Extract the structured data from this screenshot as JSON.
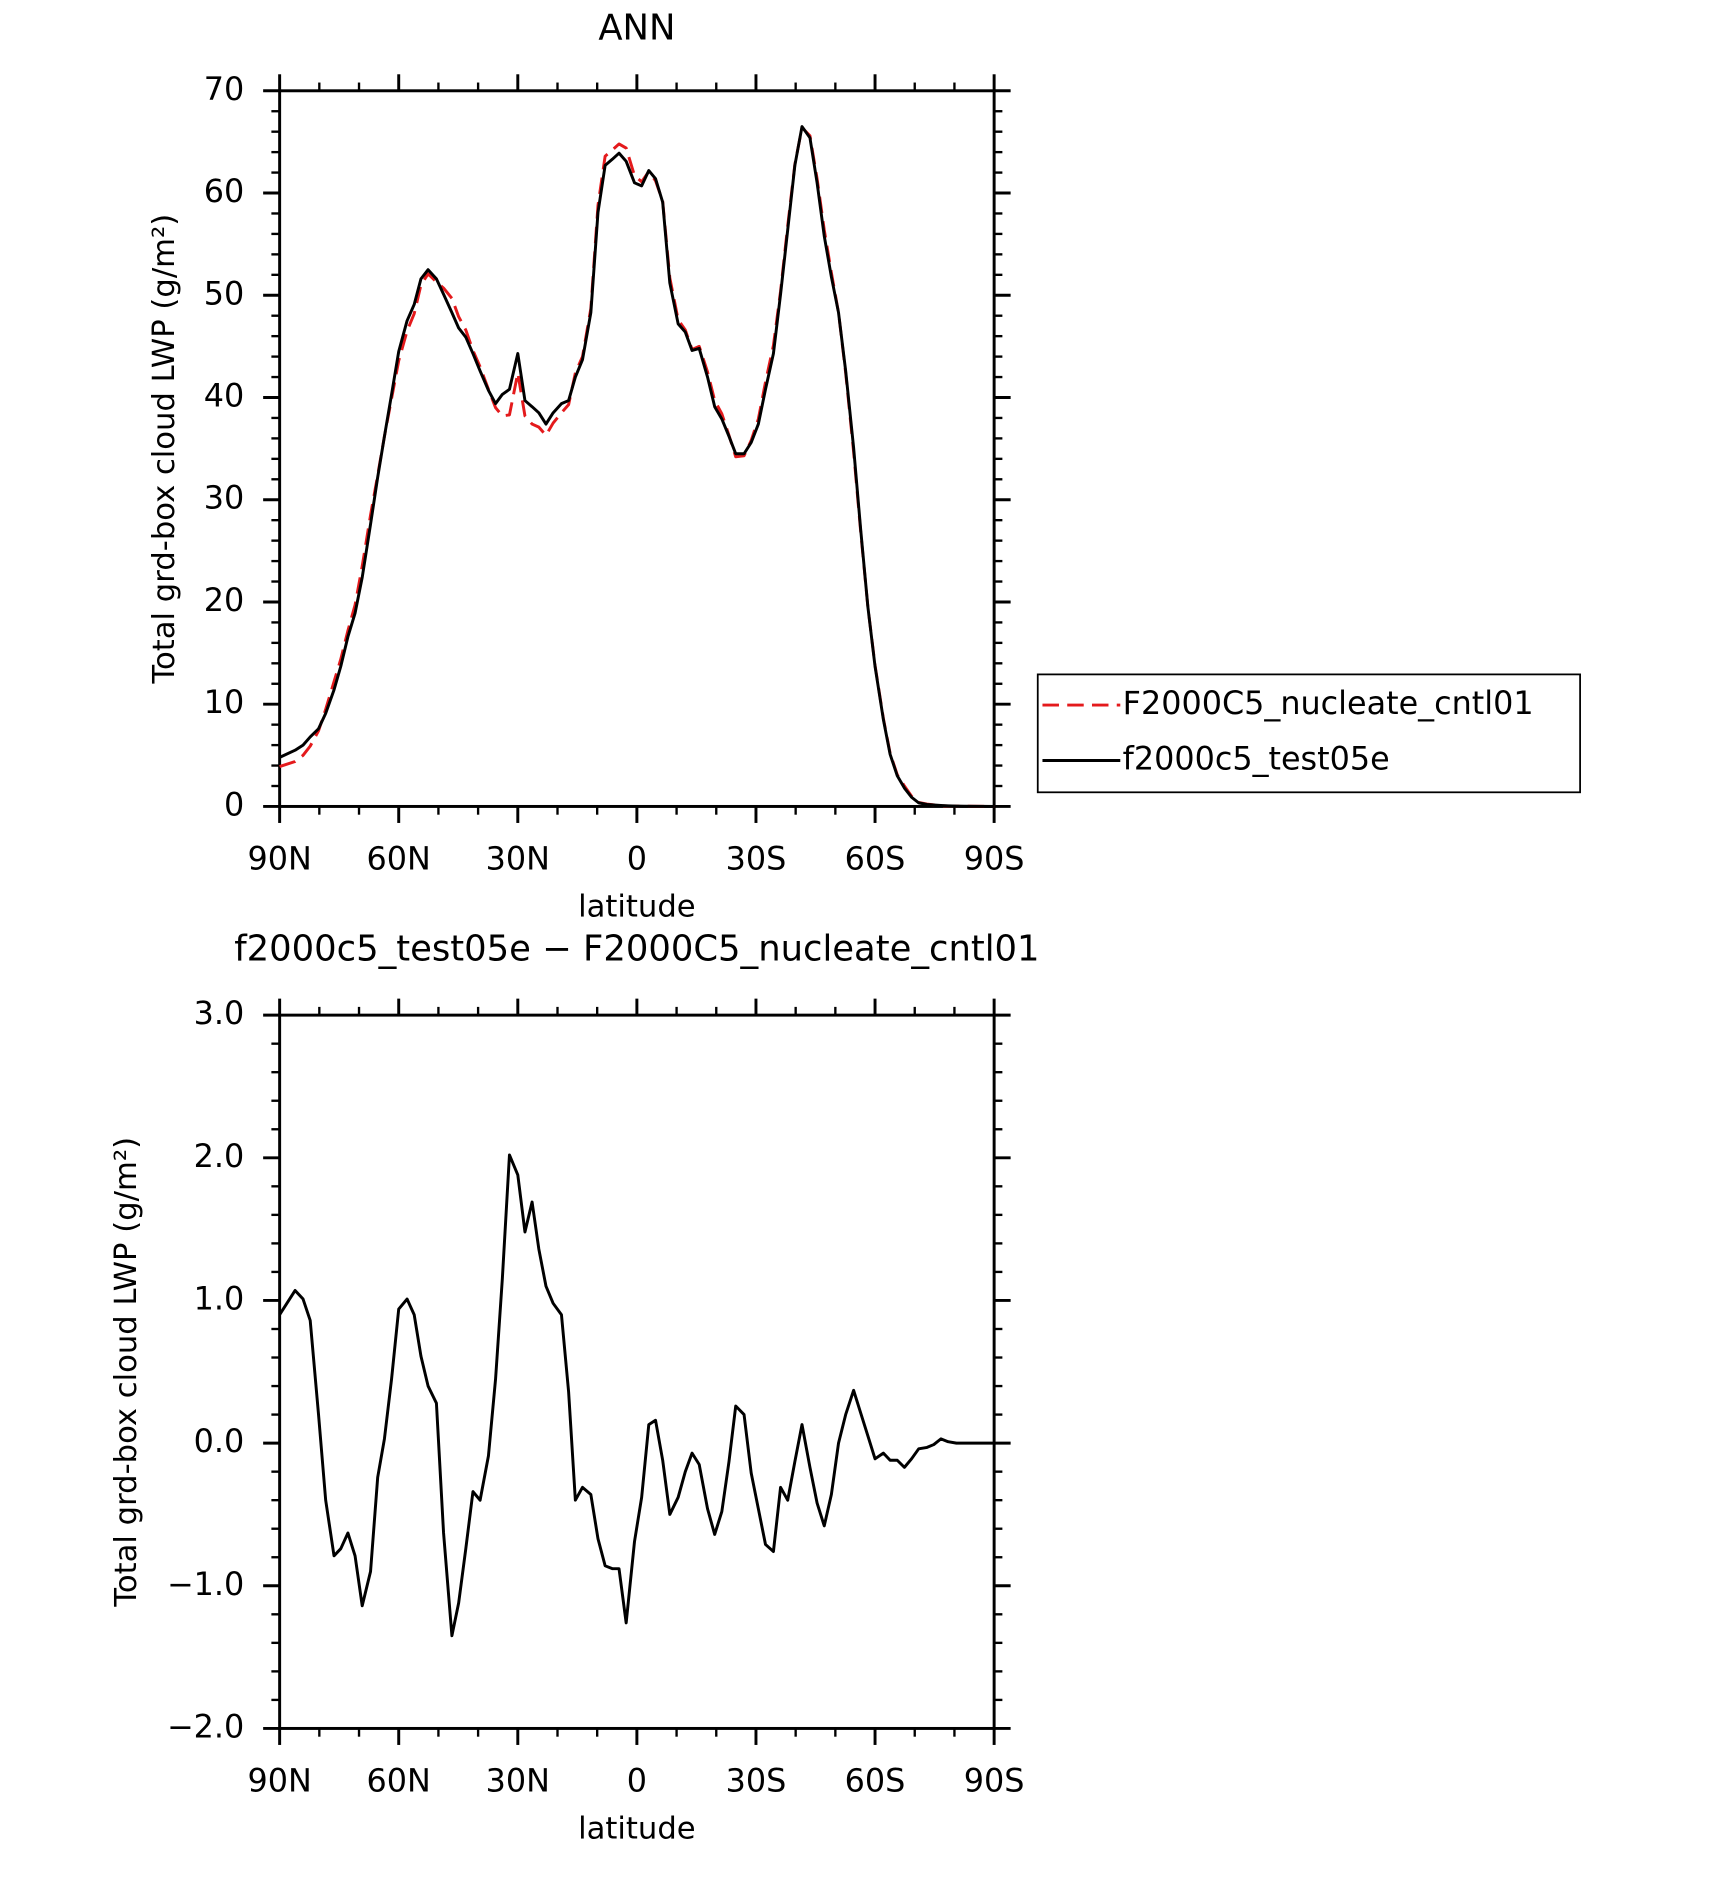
{
  "chart_data": [
    {
      "type": "line",
      "title": "ANN",
      "ylabel": "Total grd-box cloud LWP (g/m²)",
      "xlabel": "latitude",
      "x": [
        90,
        86.1,
        84.1,
        82.3,
        80.2,
        78.4,
        76.3,
        74.6,
        72.8,
        71.0,
        69.2,
        67.1,
        65.3,
        63.6,
        61.8,
        60.0,
        57.9,
        56.1,
        54.4,
        52.6,
        50.5,
        48.7,
        46.6,
        44.9,
        43.1,
        41.3,
        39.5,
        37.4,
        35.6,
        33.9,
        32.1,
        30.0,
        28.2,
        26.4,
        24.7,
        22.9,
        21.1,
        19.0,
        17.2,
        15.5,
        13.7,
        11.6,
        9.8,
        8.0,
        6.2,
        4.5,
        2.7,
        0.6,
        -1.2,
        -3.0,
        -4.7,
        -6.5,
        -8.3,
        -10.4,
        -12.2,
        -13.9,
        -15.7,
        -17.8,
        -19.6,
        -21.4,
        -23.2,
        -24.9,
        -27.0,
        -28.8,
        -30.6,
        -32.4,
        -34.4,
        -36.2,
        -38.0,
        -39.8,
        -41.6,
        -43.6,
        -45.4,
        -47.2,
        -49.0,
        -50.8,
        -52.6,
        -54.6,
        -56.4,
        -58.2,
        -60.0,
        -62.1,
        -63.8,
        -65.6,
        -67.4,
        -69.2,
        -71.0,
        -73.1,
        -74.8,
        -76.6,
        -78.4,
        -80.5,
        -82.3,
        -90
      ],
      "series": [
        {
          "name": "F2000C5_nucleate_cntl01",
          "color": "#e41a1c",
          "dash": true,
          "values": [
            3.9,
            4.4,
            5.0,
            5.9,
            7.4,
            9.5,
            12.2,
            14.4,
            17.2,
            19.7,
            23.5,
            28.5,
            32.4,
            36.2,
            39.9,
            43.6,
            46.5,
            48.2,
            51.0,
            52.1,
            51.3,
            50.7,
            49.7,
            47.9,
            46.6,
            44.6,
            43.0,
            40.8,
            39.0,
            38.2,
            38.3,
            42.4,
            38.2,
            37.4,
            37.1,
            36.3,
            37.5,
            38.5,
            39.3,
            42.4,
            44.0,
            48.7,
            58.8,
            63.6,
            64.2,
            64.8,
            64.4,
            61.7,
            61.1,
            62.1,
            61.2,
            59.2,
            51.7,
            47.6,
            46.6,
            44.7,
            45.0,
            42.5,
            39.7,
            38.4,
            36.3,
            34.2,
            34.3,
            35.8,
            37.9,
            41.5,
            45.1,
            50.4,
            56.8,
            62.8,
            66.4,
            65.6,
            61.4,
            56.4,
            52.2,
            48.3,
            42.4,
            34.7,
            26.8,
            19.5,
            13.8,
            8.6,
            5.2,
            3.1,
            2.0,
            1.0,
            0.39,
            0.23,
            0.16,
            0.07,
            0.05,
            0.03,
            0.02,
            0
          ]
        },
        {
          "name": "f2000c5_test05e",
          "color": "#000000",
          "dash": false,
          "values": [
            4.8,
            5.5,
            6.0,
            6.8,
            7.6,
            9.1,
            11.4,
            13.7,
            16.6,
            18.9,
            22.4,
            27.6,
            32.2,
            36.2,
            40.3,
            44.5,
            47.5,
            49.1,
            51.6,
            52.5,
            51.6,
            50.1,
            48.3,
            46.8,
            45.9,
            44.3,
            42.6,
            40.7,
            39.4,
            40.3,
            40.8,
            44.3,
            39.7,
            39.1,
            38.5,
            37.4,
            38.5,
            39.4,
            39.7,
            42.0,
            43.7,
            48.3,
            58.1,
            62.7,
            63.3,
            63.9,
            63.1,
            61.0,
            60.7,
            62.2,
            61.4,
            59.1,
            51.2,
            47.2,
            46.4,
            44.6,
            44.8,
            42.0,
            39.1,
            37.9,
            36.2,
            34.5,
            34.5,
            35.6,
            37.4,
            40.8,
            44.3,
            50.1,
            56.4,
            62.7,
            66.5,
            65.4,
            61.0,
            55.8,
            51.8,
            48.3,
            42.6,
            35.1,
            27.0,
            19.5,
            13.7,
            8.5,
            5.1,
            3.0,
            1.8,
            0.9,
            0.35,
            0.2,
            0.15,
            0.1,
            0.06,
            0.03,
            0.02,
            0
          ]
        }
      ],
      "xlim": [
        90,
        -90
      ],
      "xticks": [
        {
          "value": 90,
          "label": "90N"
        },
        {
          "value": 60,
          "label": "60N"
        },
        {
          "value": 30,
          "label": "30N"
        },
        0,
        {
          "value": -30,
          "label": "30S"
        },
        {
          "value": -60,
          "label": "60S"
        },
        {
          "value": -90,
          "label": "90S"
        }
      ],
      "minor_xticks": [
        80,
        70,
        50,
        40,
        20,
        10,
        -10,
        -20,
        -40,
        -50,
        -70,
        -80
      ],
      "ylim": [
        0,
        70
      ],
      "yticks": [
        0,
        10,
        20,
        30,
        40,
        50,
        60,
        70
      ],
      "minor_yticks": [
        2,
        4,
        6,
        8,
        12,
        14,
        16,
        18,
        22,
        24,
        26,
        28,
        32,
        34,
        36,
        38,
        42,
        44,
        46,
        48,
        52,
        54,
        56,
        58,
        62,
        64,
        66,
        68
      ]
    },
    {
      "type": "line",
      "title": "f2000c5_test05e − F2000C5_nucleate_cntl01",
      "ylabel": "Total grd-box cloud LWP (g/m²)",
      "xlabel": "latitude",
      "x": [
        90,
        86.1,
        84.1,
        82.3,
        80.2,
        78.4,
        76.3,
        74.6,
        72.8,
        71.0,
        69.2,
        67.1,
        65.3,
        63.6,
        61.8,
        60.0,
        57.9,
        56.1,
        54.4,
        52.6,
        50.5,
        48.7,
        46.6,
        44.9,
        43.1,
        41.3,
        39.5,
        37.4,
        35.6,
        33.9,
        32.1,
        30.0,
        28.2,
        26.4,
        24.7,
        22.9,
        21.1,
        19.0,
        17.2,
        15.5,
        13.7,
        11.6,
        9.8,
        8.0,
        6.2,
        4.5,
        2.7,
        0.6,
        -1.2,
        -3.0,
        -4.7,
        -6.5,
        -8.3,
        -10.4,
        -12.2,
        -13.9,
        -15.7,
        -17.8,
        -19.6,
        -21.4,
        -23.2,
        -24.9,
        -27.0,
        -28.8,
        -30.6,
        -32.4,
        -34.4,
        -36.2,
        -38.0,
        -39.8,
        -41.6,
        -43.6,
        -45.4,
        -47.2,
        -49.0,
        -50.8,
        -52.6,
        -54.6,
        -56.4,
        -58.2,
        -60.0,
        -62.1,
        -63.8,
        -65.6,
        -67.4,
        -69.2,
        -71.0,
        -73.1,
        -74.8,
        -76.6,
        -78.4,
        -80.5,
        -82.3,
        -90
      ],
      "series": [
        {
          "color": "#000000",
          "dash": false,
          "values": [
            0.9,
            1.07,
            1.01,
            0.86,
            0.2,
            -0.4,
            -0.79,
            -0.74,
            -0.63,
            -0.79,
            -1.14,
            -0.9,
            -0.24,
            0.03,
            0.45,
            0.94,
            1.01,
            0.9,
            0.61,
            0.4,
            0.28,
            -0.63,
            -1.35,
            -1.12,
            -0.74,
            -0.34,
            -0.4,
            -0.09,
            0.45,
            1.15,
            2.02,
            1.88,
            1.48,
            1.69,
            1.36,
            1.1,
            0.98,
            0.9,
            0.36,
            -0.4,
            -0.31,
            -0.36,
            -0.67,
            -0.86,
            -0.88,
            -0.88,
            -1.26,
            -0.69,
            -0.38,
            0.13,
            0.16,
            -0.12,
            -0.5,
            -0.38,
            -0.2,
            -0.07,
            -0.15,
            -0.46,
            -0.64,
            -0.48,
            -0.13,
            0.26,
            0.2,
            -0.21,
            -0.46,
            -0.71,
            -0.76,
            -0.31,
            -0.4,
            -0.13,
            0.13,
            -0.17,
            -0.42,
            -0.58,
            -0.36,
            0.0,
            0.2,
            0.37,
            0.21,
            0.05,
            -0.11,
            -0.07,
            -0.12,
            -0.12,
            -0.17,
            -0.11,
            -0.04,
            -0.03,
            -0.01,
            0.03,
            0.01,
            0,
            0,
            0
          ]
        }
      ],
      "xlim": [
        90,
        -90
      ],
      "xticks": [
        {
          "value": 90,
          "label": "90N"
        },
        {
          "value": 60,
          "label": "60N"
        },
        {
          "value": 30,
          "label": "30N"
        },
        0,
        {
          "value": -30,
          "label": "30S"
        },
        {
          "value": -60,
          "label": "60S"
        },
        {
          "value": -90,
          "label": "90S"
        }
      ],
      "minor_xticks": [
        80,
        70,
        50,
        40,
        20,
        10,
        -10,
        -20,
        -40,
        -50,
        -70,
        -80
      ],
      "ylim": [
        -2,
        3
      ],
      "yticks": [
        {
          "value": -2,
          "label": "−2.0"
        },
        {
          "value": -1,
          "label": "−1.0"
        },
        {
          "value": 0,
          "label": "0.0"
        },
        {
          "value": 1,
          "label": "1.0"
        },
        {
          "value": 2,
          "label": "2.0"
        },
        {
          "value": 3,
          "label": "3.0"
        }
      ],
      "minor_yticks": [
        -1.8,
        -1.6,
        -1.4,
        -1.2,
        -0.8,
        -0.6,
        -0.4,
        -0.2,
        0.2,
        0.4,
        0.6,
        0.8,
        1.2,
        1.4,
        1.6,
        1.8,
        2.2,
        2.4,
        2.6,
        2.8
      ]
    }
  ]
}
